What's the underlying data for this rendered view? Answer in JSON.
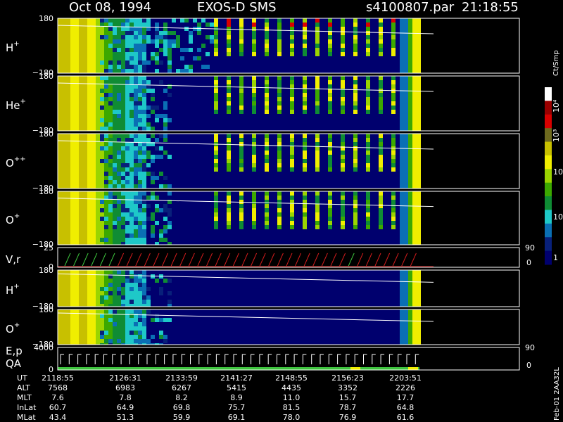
{
  "header": {
    "date": "Oct 08, 1994",
    "mission": "EXOS-D SMS",
    "file": "s4100807.par",
    "time": "21:18:55"
  },
  "colorbar": {
    "unit": "Ct/Smp",
    "ticks": [
      "10⁴",
      "10³",
      "100",
      "10",
      "1"
    ],
    "colors": [
      "#ffffff",
      "#9b0000",
      "#d90000",
      "#6e6a1e",
      "#c8c000",
      "#f0ee00",
      "#9bd400",
      "#3ca800",
      "#0f8c34",
      "#1ec8c8",
      "#0a6fb4",
      "#08207a",
      "#00006e"
    ]
  },
  "panels": [
    {
      "id": "hplus_a",
      "ion": "H",
      "charge": "+",
      "top_tick": "180",
      "bottom_tick": "−180"
    },
    {
      "id": "heplus",
      "ion": "He",
      "charge": "+",
      "top_tick": "180",
      "bottom_tick": "−180"
    },
    {
      "id": "oplusplus",
      "ion": "O",
      "charge": "++",
      "top_tick": "180",
      "bottom_tick": "−180"
    },
    {
      "id": "oplus_a",
      "ion": "O",
      "charge": "+",
      "top_tick": "180",
      "bottom_tick": "−180"
    },
    {
      "id": "vr",
      "ion": "V,r",
      "charge": "",
      "top_tick": "25",
      "bottom_tick": "0",
      "right_top": "90",
      "right_bottom": "0"
    },
    {
      "id": "hplus_b",
      "ion": "H",
      "charge": "+",
      "top_tick": "180",
      "bottom_tick": "−180"
    },
    {
      "id": "oplus_b",
      "ion": "O",
      "charge": "+",
      "top_tick": "180",
      "bottom_tick": "−180"
    },
    {
      "id": "ep",
      "ion": "E,p",
      "ion2": "QA",
      "charge": "",
      "top_tick": "4000",
      "bottom_tick": "0",
      "right_top": "90",
      "right_bottom": "0"
    }
  ],
  "table": {
    "rows": [
      {
        "label": "UT",
        "values": [
          "2118:55",
          "2126:31",
          "2133:59",
          "2141:27",
          "2148:55",
          "2156:23",
          "2203:51"
        ]
      },
      {
        "label": "ALT",
        "values": [
          "7568",
          "6983",
          "6267",
          "5415",
          "4435",
          "3352",
          "2226"
        ]
      },
      {
        "label": "MLT",
        "values": [
          "7.6",
          "7.8",
          "8.2",
          "8.9",
          "11.0",
          "15.7",
          "17.7"
        ]
      },
      {
        "label": "InLat",
        "values": [
          "60.7",
          "64.9",
          "69.8",
          "75.7",
          "81.5",
          "78.7",
          "64.8"
        ]
      },
      {
        "label": "MLat",
        "values": [
          "43.4",
          "51.3",
          "59.9",
          "69.1",
          "78.0",
          "76.9",
          "61.6"
        ]
      }
    ]
  },
  "side_note": "Feb-01 2AA32L",
  "chart_data": {
    "type": "heatmap",
    "title": "Oct 08, 1994   EXOS-D SMS",
    "xlabel": "UT",
    "x_ticks": [
      "2118:55",
      "2126:31",
      "2133:59",
      "2141:27",
      "2148:55",
      "2156:23",
      "2203:51"
    ],
    "colorscale": {
      "unit": "Ct/Smp",
      "range": [
        1,
        10000
      ],
      "scale": "log"
    },
    "series": [
      {
        "name": "H+",
        "ylim": [
          -180,
          180
        ]
      },
      {
        "name": "He+",
        "ylim": [
          -180,
          180
        ]
      },
      {
        "name": "O++",
        "ylim": [
          -180,
          180
        ]
      },
      {
        "name": "O+",
        "ylim": [
          -180,
          180
        ]
      },
      {
        "name": "V,r",
        "ylim": [
          0,
          25
        ],
        "right_ylim": [
          0,
          90
        ]
      },
      {
        "name": "H+",
        "ylim": [
          -180,
          180
        ]
      },
      {
        "name": "O+",
        "ylim": [
          -180,
          180
        ]
      },
      {
        "name": "E,p / QA",
        "ylim": [
          0,
          4000
        ],
        "right_ylim": [
          0,
          90
        ]
      }
    ]
  }
}
